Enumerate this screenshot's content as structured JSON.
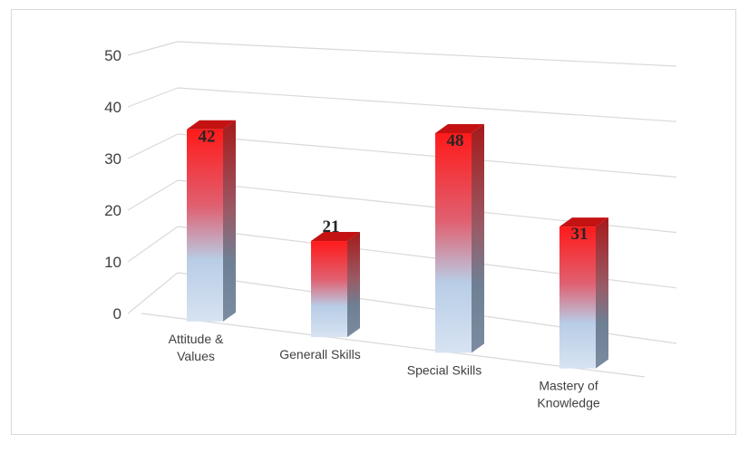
{
  "chart_data": {
    "type": "bar",
    "style": "3d-column",
    "categories": [
      [
        "Attitude &",
        "Values"
      ],
      [
        "Generall Skills"
      ],
      [
        "Special Skills"
      ],
      [
        "Mastery of",
        "Knowledge"
      ]
    ],
    "values": [
      42,
      21,
      48,
      31
    ],
    "data_labels": [
      "42",
      "21",
      "48",
      "31"
    ],
    "y_ticks": [
      "0",
      "10",
      "20",
      "30",
      "40",
      "50"
    ],
    "ylim": [
      0,
      50
    ],
    "grid": true,
    "legend": "none",
    "title": "",
    "xlabel": "",
    "ylabel": "",
    "colors": {
      "bar_top": "#ff1a1a",
      "bar_mid": "#e06070",
      "bar_bottom": "#b8cde6",
      "bar_base": "#d7e3f2",
      "side_top": "#a51a1a",
      "side_bottom": "#6f8094",
      "cap": "#c41212",
      "grid": "#d9d9d9",
      "text": "#404040"
    }
  }
}
